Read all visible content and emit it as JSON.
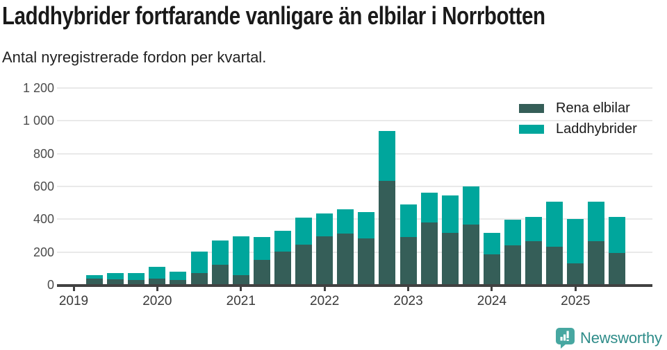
{
  "title": "Laddhybrider fortfarande vanligare än elbilar i Norrbotten",
  "subtitle": "Antal nyregistrerade fordon per kvartal.",
  "colors": {
    "elbilar": "#355E58",
    "laddhybrider": "#00A69C",
    "grid": "#E9E9E9",
    "axis": "#414141",
    "brand": "#2E8C89",
    "brand_icon": "#47A7A1"
  },
  "legend": {
    "items": [
      {
        "label": "Rena elbilar",
        "color_key": "elbilar"
      },
      {
        "label": "Laddhybrider",
        "color_key": "laddhybrider"
      }
    ]
  },
  "footer": {
    "brand": "Newsworthy"
  },
  "chart_data": {
    "type": "bar",
    "stacked": true,
    "title": "Laddhybrider fortfarande vanligare än elbilar i Norrbotten",
    "subtitle": "Antal nyregistrerade fordon per kvartal.",
    "ylim": [
      0,
      1200
    ],
    "grid": true,
    "legend_position": "top-right",
    "categories": [
      "Q1 2019",
      "Q2 2019",
      "Q3 2019",
      "Q4 2019",
      "Q1 2020",
      "Q2 2020",
      "Q3 2020",
      "Q4 2020",
      "Q1 2021",
      "Q2 2021",
      "Q3 2021",
      "Q4 2021",
      "Q1 2022",
      "Q2 2022",
      "Q3 2022",
      "Q4 2022",
      "Q1 2023",
      "Q2 2023",
      "Q3 2023",
      "Q4 2023",
      "Q1 2024",
      "Q2 2024",
      "Q3 2024",
      "Q4 2024",
      "Q1 2025",
      "Q2 2025",
      "Q3 2025"
    ],
    "series": [
      {
        "name": "Rena elbilar",
        "values": [
          0,
          38,
          34,
          29,
          36,
          30,
          70,
          122,
          60,
          151,
          202,
          247,
          296,
          311,
          282,
          633,
          292,
          380,
          317,
          369,
          187,
          240,
          268,
          234,
          132,
          268,
          196
        ]
      },
      {
        "name": "Laddhybrider",
        "values": [
          0,
          20,
          36,
          45,
          75,
          50,
          131,
          150,
          236,
          141,
          128,
          161,
          140,
          149,
          160,
          305,
          199,
          181,
          230,
          230,
          129,
          156,
          146,
          274,
          269,
          240,
          218
        ]
      }
    ],
    "x_tick_labels": [
      "2019",
      "2020",
      "2021",
      "2022",
      "2023",
      "2024",
      "2025"
    ],
    "y_ticks": [
      0,
      200,
      400,
      600,
      800,
      1000,
      1200
    ],
    "y_tick_labels": [
      "0",
      "200",
      "400",
      "600",
      "800",
      "1 000",
      "1 200"
    ]
  }
}
